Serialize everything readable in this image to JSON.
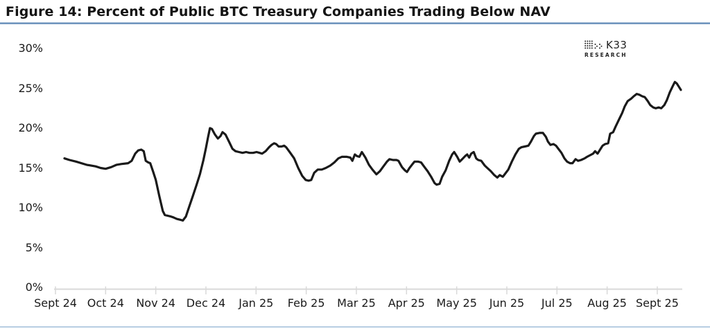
{
  "figure_label": "Figure 14",
  "logo": {
    "name": "K33",
    "subtitle": "RESEARCH"
  },
  "chart_data": {
    "type": "line",
    "title": "Figure 14: Percent of Public BTC Treasury Companies Trading Below NAV",
    "xlabel": "",
    "ylabel": "",
    "ylim": [
      0,
      30
    ],
    "y_step": 5,
    "grid": "none",
    "legend": "none",
    "line_color": "#1a1a1a",
    "axis_color": "#d9d9d9",
    "x_unit": "months_from_first_tick",
    "x_tick_labels": [
      "Sept 24",
      "Oct 24",
      "Nov 24",
      "Dec 24",
      "Jan 25",
      "Feb 25",
      "Mar 25",
      "Apr 25",
      "May 25",
      "Jun 25",
      "Jul 25",
      "Aug 25",
      "Sept 25"
    ],
    "y_tick_labels": [
      "0%",
      "5%",
      "10%",
      "15%",
      "20%",
      "25%",
      "30%"
    ],
    "series": [
      {
        "name": "Percent of public BTC treasury companies trading below NAV",
        "points": [
          [
            0.18,
            16.2
          ],
          [
            0.28,
            16.0
          ],
          [
            0.41,
            15.8
          ],
          [
            0.62,
            15.4
          ],
          [
            0.8,
            15.2
          ],
          [
            0.9,
            15.0
          ],
          [
            1.0,
            14.9
          ],
          [
            1.11,
            15.1
          ],
          [
            1.22,
            15.4
          ],
          [
            1.31,
            15.5
          ],
          [
            1.45,
            15.6
          ],
          [
            1.52,
            15.9
          ],
          [
            1.59,
            16.8
          ],
          [
            1.65,
            17.2
          ],
          [
            1.71,
            17.3
          ],
          [
            1.76,
            17.1
          ],
          [
            1.8,
            15.9
          ],
          [
            1.85,
            15.7
          ],
          [
            1.89,
            15.6
          ],
          [
            1.95,
            14.5
          ],
          [
            2.0,
            13.5
          ],
          [
            2.07,
            11.5
          ],
          [
            2.14,
            9.6
          ],
          [
            2.18,
            9.1
          ],
          [
            2.24,
            9.0
          ],
          [
            2.3,
            8.9
          ],
          [
            2.35,
            8.8
          ],
          [
            2.42,
            8.6
          ],
          [
            2.49,
            8.5
          ],
          [
            2.54,
            8.4
          ],
          [
            2.6,
            8.9
          ],
          [
            2.67,
            10.2
          ],
          [
            2.74,
            11.5
          ],
          [
            2.81,
            12.8
          ],
          [
            2.88,
            14.2
          ],
          [
            2.95,
            16.0
          ],
          [
            3.0,
            17.5
          ],
          [
            3.04,
            18.8
          ],
          [
            3.08,
            20.0
          ],
          [
            3.12,
            19.9
          ],
          [
            3.18,
            19.2
          ],
          [
            3.24,
            18.7
          ],
          [
            3.29,
            19.0
          ],
          [
            3.33,
            19.5
          ],
          [
            3.39,
            19.2
          ],
          [
            3.46,
            18.3
          ],
          [
            3.53,
            17.4
          ],
          [
            3.59,
            17.1
          ],
          [
            3.66,
            17.0
          ],
          [
            3.73,
            16.9
          ],
          [
            3.8,
            17.0
          ],
          [
            3.87,
            16.9
          ],
          [
            3.94,
            16.9
          ],
          [
            4.01,
            17.0
          ],
          [
            4.07,
            16.9
          ],
          [
            4.12,
            16.8
          ],
          [
            4.19,
            17.1
          ],
          [
            4.26,
            17.6
          ],
          [
            4.31,
            17.9
          ],
          [
            4.36,
            18.1
          ],
          [
            4.4,
            18.0
          ],
          [
            4.45,
            17.7
          ],
          [
            4.51,
            17.7
          ],
          [
            4.56,
            17.8
          ],
          [
            4.6,
            17.6
          ],
          [
            4.67,
            17.0
          ],
          [
            4.76,
            16.2
          ],
          [
            4.84,
            15.0
          ],
          [
            4.92,
            14.0
          ],
          [
            4.99,
            13.5
          ],
          [
            5.05,
            13.4
          ],
          [
            5.1,
            13.5
          ],
          [
            5.16,
            14.4
          ],
          [
            5.23,
            14.8
          ],
          [
            5.31,
            14.8
          ],
          [
            5.39,
            15.0
          ],
          [
            5.48,
            15.3
          ],
          [
            5.56,
            15.7
          ],
          [
            5.64,
            16.2
          ],
          [
            5.71,
            16.4
          ],
          [
            5.81,
            16.4
          ],
          [
            5.88,
            16.3
          ],
          [
            5.92,
            15.9
          ],
          [
            5.97,
            16.7
          ],
          [
            6.01,
            16.5
          ],
          [
            6.06,
            16.4
          ],
          [
            6.11,
            17.0
          ],
          [
            6.18,
            16.3
          ],
          [
            6.25,
            15.4
          ],
          [
            6.32,
            14.8
          ],
          [
            6.4,
            14.2
          ],
          [
            6.47,
            14.6
          ],
          [
            6.54,
            15.2
          ],
          [
            6.61,
            15.8
          ],
          [
            6.66,
            16.1
          ],
          [
            6.73,
            16.0
          ],
          [
            6.8,
            16.0
          ],
          [
            6.84,
            15.9
          ],
          [
            6.91,
            15.1
          ],
          [
            6.97,
            14.7
          ],
          [
            7.01,
            14.5
          ],
          [
            7.06,
            15.0
          ],
          [
            7.12,
            15.5
          ],
          [
            7.16,
            15.8
          ],
          [
            7.23,
            15.8
          ],
          [
            7.29,
            15.7
          ],
          [
            7.36,
            15.1
          ],
          [
            7.42,
            14.6
          ],
          [
            7.49,
            13.9
          ],
          [
            7.56,
            13.1
          ],
          [
            7.6,
            12.9
          ],
          [
            7.66,
            13.0
          ],
          [
            7.71,
            13.9
          ],
          [
            7.78,
            14.7
          ],
          [
            7.85,
            15.9
          ],
          [
            7.91,
            16.7
          ],
          [
            7.95,
            17.0
          ],
          [
            8.01,
            16.4
          ],
          [
            8.06,
            15.8
          ],
          [
            8.11,
            16.1
          ],
          [
            8.17,
            16.5
          ],
          [
            8.21,
            16.7
          ],
          [
            8.25,
            16.3
          ],
          [
            8.29,
            16.8
          ],
          [
            8.34,
            17.0
          ],
          [
            8.39,
            16.2
          ],
          [
            8.43,
            16.0
          ],
          [
            8.49,
            15.9
          ],
          [
            8.56,
            15.3
          ],
          [
            8.61,
            15.0
          ],
          [
            8.68,
            14.6
          ],
          [
            8.75,
            14.1
          ],
          [
            8.81,
            13.8
          ],
          [
            8.86,
            14.1
          ],
          [
            8.92,
            13.9
          ],
          [
            8.97,
            14.3
          ],
          [
            9.03,
            14.8
          ],
          [
            9.1,
            15.8
          ],
          [
            9.17,
            16.7
          ],
          [
            9.24,
            17.4
          ],
          [
            9.29,
            17.6
          ],
          [
            9.36,
            17.7
          ],
          [
            9.43,
            17.8
          ],
          [
            9.48,
            18.3
          ],
          [
            9.54,
            19.0
          ],
          [
            9.58,
            19.3
          ],
          [
            9.65,
            19.4
          ],
          [
            9.72,
            19.4
          ],
          [
            9.78,
            18.9
          ],
          [
            9.82,
            18.3
          ],
          [
            9.87,
            17.9
          ],
          [
            9.93,
            18.0
          ],
          [
            9.98,
            17.8
          ],
          [
            10.04,
            17.3
          ],
          [
            10.09,
            16.9
          ],
          [
            10.15,
            16.2
          ],
          [
            10.2,
            15.8
          ],
          [
            10.26,
            15.6
          ],
          [
            10.31,
            15.6
          ],
          [
            10.37,
            16.1
          ],
          [
            10.42,
            15.9
          ],
          [
            10.48,
            16.0
          ],
          [
            10.55,
            16.2
          ],
          [
            10.6,
            16.4
          ],
          [
            10.66,
            16.6
          ],
          [
            10.72,
            16.8
          ],
          [
            10.76,
            17.1
          ],
          [
            10.81,
            16.8
          ],
          [
            10.87,
            17.4
          ],
          [
            10.91,
            17.8
          ],
          [
            10.96,
            18.0
          ],
          [
            11.02,
            18.1
          ],
          [
            11.06,
            19.3
          ],
          [
            11.12,
            19.5
          ],
          [
            11.17,
            20.2
          ],
          [
            11.23,
            21.0
          ],
          [
            11.3,
            21.9
          ],
          [
            11.35,
            22.7
          ],
          [
            11.41,
            23.4
          ],
          [
            11.48,
            23.7
          ],
          [
            11.53,
            24.0
          ],
          [
            11.59,
            24.3
          ],
          [
            11.64,
            24.2
          ],
          [
            11.7,
            24.0
          ],
          [
            11.75,
            23.9
          ],
          [
            11.81,
            23.4
          ],
          [
            11.86,
            22.9
          ],
          [
            11.92,
            22.6
          ],
          [
            11.97,
            22.5
          ],
          [
            12.03,
            22.6
          ],
          [
            12.08,
            22.5
          ],
          [
            12.14,
            22.9
          ],
          [
            12.19,
            23.5
          ],
          [
            12.25,
            24.5
          ],
          [
            12.31,
            25.3
          ],
          [
            12.35,
            25.8
          ],
          [
            12.39,
            25.6
          ],
          [
            12.43,
            25.2
          ],
          [
            12.47,
            24.8
          ]
        ]
      }
    ]
  }
}
